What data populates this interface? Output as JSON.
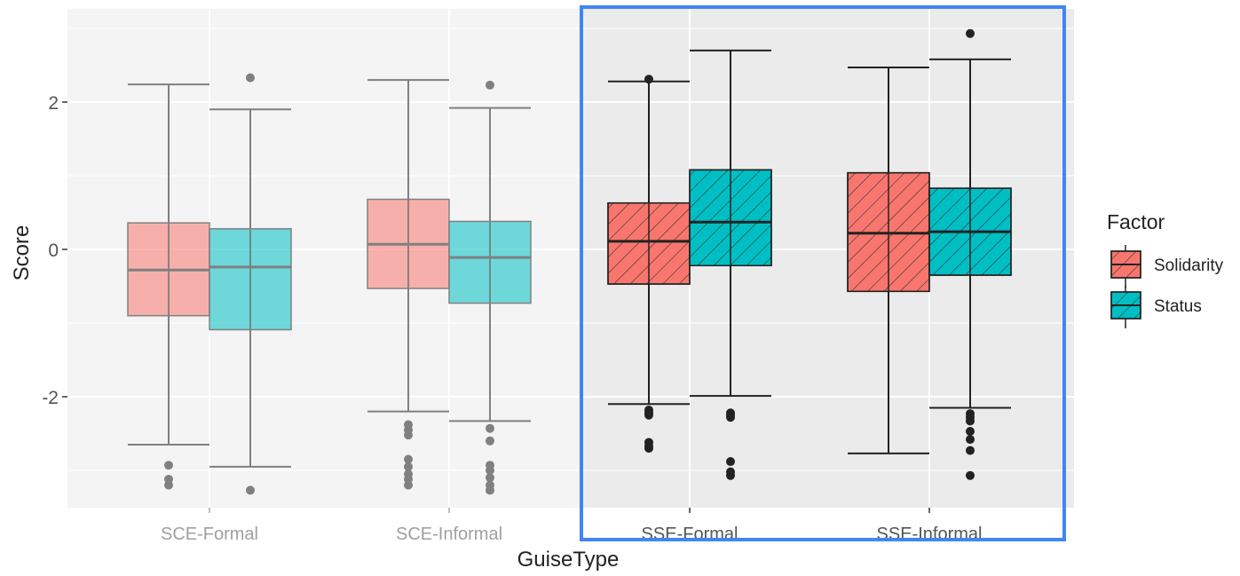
{
  "chart_data": {
    "type": "boxplot",
    "title": "",
    "xlabel": "GuiseType",
    "ylabel": "Score",
    "categories": [
      "SCE-Formal",
      "SCE-Informal",
      "SSE-Formal",
      "SSE-Informal"
    ],
    "y_ticks": [
      {
        "value": 2,
        "label": "2"
      },
      {
        "value": 0,
        "label": "0"
      },
      {
        "value": -2,
        "label": "-2"
      }
    ],
    "ylim": [
      -3.55,
      3.35
    ],
    "grid": true,
    "legend": {
      "title": "Factor",
      "position": "right",
      "items": [
        {
          "label": "Solidarity",
          "color": "#F8766D"
        },
        {
          "label": "Status",
          "color": "#00BFC4"
        }
      ]
    },
    "highlight": {
      "categories": [
        "SSE-Formal",
        "SSE-Informal"
      ],
      "color": "#4285f4"
    },
    "faded_categories": [
      "SCE-Formal",
      "SCE-Informal"
    ],
    "hatched_categories": [
      "SSE-Formal",
      "SSE-Informal"
    ],
    "series": [
      {
        "name": "Solidarity",
        "color": "#F8766D",
        "boxes": [
          {
            "category": "SCE-Formal",
            "whisker_low": -2.65,
            "q1": -0.9,
            "median": -0.28,
            "q3": 0.36,
            "whisker_high": 2.24,
            "outliers": [
              -2.93,
              -3.12,
              -3.2
            ]
          },
          {
            "category": "SCE-Informal",
            "whisker_low": -2.2,
            "q1": -0.53,
            "median": 0.07,
            "q3": 0.68,
            "whisker_high": 2.3,
            "outliers": [
              -2.38,
              -2.45,
              -2.52,
              -2.85,
              -2.95,
              -3.05,
              -3.12,
              -3.2
            ]
          },
          {
            "category": "SSE-Formal",
            "whisker_low": -2.1,
            "q1": -0.47,
            "median": 0.11,
            "q3": 0.63,
            "whisker_high": 2.28,
            "outliers": [
              -2.18,
              -2.22,
              -2.25,
              -2.62,
              -2.67,
              -2.7,
              2.31
            ]
          },
          {
            "category": "SSE-Informal",
            "whisker_low": -2.77,
            "q1": -0.57,
            "median": 0.22,
            "q3": 1.04,
            "whisker_high": 2.47,
            "outliers": []
          }
        ]
      },
      {
        "name": "Status",
        "color": "#00BFC4",
        "boxes": [
          {
            "category": "SCE-Formal",
            "whisker_low": -2.95,
            "q1": -1.09,
            "median": -0.24,
            "q3": 0.28,
            "whisker_high": 1.9,
            "outliers": [
              2.33,
              -3.27
            ]
          },
          {
            "category": "SCE-Informal",
            "whisker_low": -2.33,
            "q1": -0.73,
            "median": -0.11,
            "q3": 0.38,
            "whisker_high": 1.92,
            "outliers": [
              2.23,
              -2.43,
              -2.6,
              -2.93,
              -3.0,
              -3.1,
              -3.2,
              -3.27
            ]
          },
          {
            "category": "SSE-Formal",
            "whisker_low": -1.99,
            "q1": -0.22,
            "median": 0.37,
            "q3": 1.08,
            "whisker_high": 2.7,
            "outliers": [
              -2.22,
              -2.25,
              -2.28,
              -2.88,
              -3.02,
              -3.07
            ]
          },
          {
            "category": "SSE-Informal",
            "whisker_low": -2.15,
            "q1": -0.35,
            "median": 0.24,
            "q3": 0.83,
            "whisker_high": 2.58,
            "outliers": [
              2.93,
              -2.23,
              -2.28,
              -2.33,
              -2.47,
              -2.58,
              -2.73,
              -3.07
            ]
          }
        ]
      }
    ]
  }
}
